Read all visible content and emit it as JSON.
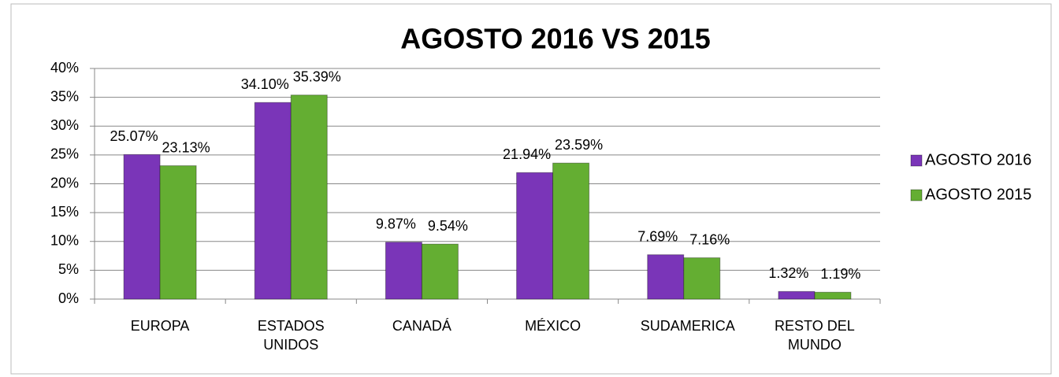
{
  "chart_data": {
    "type": "bar",
    "title": "AGOSTO  2016 VS 2015",
    "categories": [
      "EUROPA",
      "ESTADOS UNIDOS",
      "CANADÁ",
      "MÉXICO",
      "SUDAMERICA",
      "RESTO DEL MUNDO"
    ],
    "series": [
      {
        "name": "AGOSTO 2016",
        "color": "#7a35b8",
        "values": [
          25.07,
          34.1,
          9.87,
          21.94,
          7.69,
          1.32
        ],
        "value_labels": [
          "25.07%",
          "34.10%",
          "9.87%",
          "21.94%",
          "7.69%",
          "1.32%"
        ]
      },
      {
        "name": "AGOSTO 2015",
        "color": "#64ae32",
        "values": [
          23.13,
          35.39,
          9.54,
          23.59,
          7.16,
          1.19
        ],
        "value_labels": [
          "23.13%",
          "35.39%",
          "9.54%",
          "23.59%",
          "7.16%",
          "1.19%"
        ]
      }
    ],
    "ylim": [
      0,
      40
    ],
    "yticks": [
      {
        "value": 0,
        "label": "0%"
      },
      {
        "value": 5,
        "label": "5%"
      },
      {
        "value": 10,
        "label": "10%"
      },
      {
        "value": 15,
        "label": "15%"
      },
      {
        "value": 20,
        "label": "20%"
      },
      {
        "value": 25,
        "label": "25%"
      },
      {
        "value": 30,
        "label": "30%"
      },
      {
        "value": 35,
        "label": "35%"
      },
      {
        "value": 40,
        "label": "40%"
      }
    ],
    "grid": true,
    "legend": "right"
  }
}
